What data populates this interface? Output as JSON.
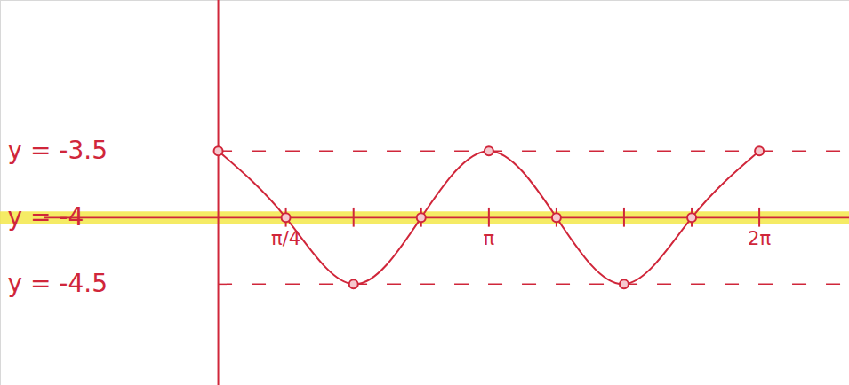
{
  "chart_data": {
    "type": "line",
    "x": [
      0,
      0.785,
      1.571,
      2.356,
      3.142,
      3.927,
      4.712,
      5.498,
      6.283
    ],
    "series": [
      {
        "values": [
          -3.5,
          -4,
          -4.5,
          -4,
          -3.5,
          -4,
          -4.5,
          -4,
          -3.5
        ],
        "color": "#d0263a",
        "marker": "circle",
        "line_style": "solid"
      }
    ],
    "xlim": [
      -2.53,
      7.33
    ],
    "ylim": [
      -5.26,
      -2.37
    ],
    "xticks": [
      {
        "value": 0.785,
        "label": "π/4"
      },
      {
        "value": 1.571,
        "label": null
      },
      {
        "value": 2.356,
        "label": null
      },
      {
        "value": 3.142,
        "label": "π"
      },
      {
        "value": 3.927,
        "label": null
      },
      {
        "value": 4.712,
        "label": null
      },
      {
        "value": 5.498,
        "label": null
      },
      {
        "value": 6.283,
        "label": "2π"
      }
    ],
    "yticks": [
      {
        "value": -3.5,
        "label": "y = -3.5"
      },
      {
        "value": -4,
        "label": "y = -4"
      },
      {
        "value": -4.5,
        "label": "y = -4.5"
      }
    ],
    "grid": true,
    "highlight": -4,
    "highlight_color": "#f3e84a"
  }
}
